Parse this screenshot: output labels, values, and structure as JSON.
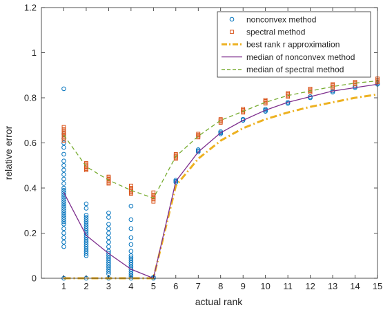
{
  "chart_data": {
    "type": "scatter",
    "xlabel": "actual rank",
    "ylabel": "relative error",
    "xlim": [
      0,
      15
    ],
    "ylim": [
      0,
      1.2
    ],
    "xticks": [
      1,
      2,
      3,
      4,
      5,
      6,
      7,
      8,
      9,
      10,
      11,
      12,
      13,
      14,
      15
    ],
    "yticks": [
      0,
      0.2,
      0.4,
      0.6,
      0.8,
      1.0,
      1.2
    ],
    "ytick_labels": [
      "0",
      "0.2",
      "0.4",
      "0.6",
      "0.8",
      "1",
      "1.2"
    ],
    "grid": false,
    "legend_position": "top-right",
    "legend": [
      "nonconvex method",
      "spectral method",
      "best rank r approximation",
      "median of nonconvex method",
      "median of spectral method"
    ],
    "series": [
      {
        "name": "nonconvex method",
        "kind": "scatter",
        "color": "#0072BD",
        "points": [
          [
            1,
            0.84
          ],
          [
            1,
            0.64
          ],
          [
            1,
            0.62
          ],
          [
            1,
            0.6
          ],
          [
            1,
            0.58
          ],
          [
            1,
            0.55
          ],
          [
            1,
            0.52
          ],
          [
            1,
            0.5
          ],
          [
            1,
            0.48
          ],
          [
            1,
            0.46
          ],
          [
            1,
            0.44
          ],
          [
            1,
            0.42
          ],
          [
            1,
            0.4
          ],
          [
            1,
            0.39
          ],
          [
            1,
            0.38
          ],
          [
            1,
            0.37
          ],
          [
            1,
            0.36
          ],
          [
            1,
            0.35
          ],
          [
            1,
            0.34
          ],
          [
            1,
            0.33
          ],
          [
            1,
            0.32
          ],
          [
            1,
            0.31
          ],
          [
            1,
            0.3
          ],
          [
            1,
            0.29
          ],
          [
            1,
            0.28
          ],
          [
            1,
            0.27
          ],
          [
            1,
            0.26
          ],
          [
            1,
            0.25
          ],
          [
            1,
            0.24
          ],
          [
            1,
            0.22
          ],
          [
            1,
            0.2
          ],
          [
            1,
            0.18
          ],
          [
            1,
            0.16
          ],
          [
            1,
            0.14
          ],
          [
            1,
            0.0
          ],
          [
            2,
            0.33
          ],
          [
            2,
            0.31
          ],
          [
            2,
            0.28
          ],
          [
            2,
            0.27
          ],
          [
            2,
            0.26
          ],
          [
            2,
            0.25
          ],
          [
            2,
            0.24
          ],
          [
            2,
            0.23
          ],
          [
            2,
            0.22
          ],
          [
            2,
            0.21
          ],
          [
            2,
            0.2
          ],
          [
            2,
            0.19
          ],
          [
            2,
            0.18
          ],
          [
            2,
            0.17
          ],
          [
            2,
            0.16
          ],
          [
            2,
            0.15
          ],
          [
            2,
            0.14
          ],
          [
            2,
            0.13
          ],
          [
            2,
            0.12
          ],
          [
            2,
            0.11
          ],
          [
            2,
            0.1
          ],
          [
            2,
            0.0
          ],
          [
            3,
            0.29
          ],
          [
            3,
            0.27
          ],
          [
            3,
            0.24
          ],
          [
            3,
            0.22
          ],
          [
            3,
            0.2
          ],
          [
            3,
            0.18
          ],
          [
            3,
            0.16
          ],
          [
            3,
            0.14
          ],
          [
            3,
            0.12
          ],
          [
            3,
            0.11
          ],
          [
            3,
            0.1
          ],
          [
            3,
            0.09
          ],
          [
            3,
            0.08
          ],
          [
            3,
            0.07
          ],
          [
            3,
            0.06
          ],
          [
            3,
            0.05
          ],
          [
            3,
            0.04
          ],
          [
            3,
            0.03
          ],
          [
            3,
            0.02
          ],
          [
            3,
            0.0
          ],
          [
            4,
            0.32
          ],
          [
            4,
            0.26
          ],
          [
            4,
            0.22
          ],
          [
            4,
            0.18
          ],
          [
            4,
            0.15
          ],
          [
            4,
            0.12
          ],
          [
            4,
            0.1
          ],
          [
            4,
            0.09
          ],
          [
            4,
            0.08
          ],
          [
            4,
            0.07
          ],
          [
            4,
            0.06
          ],
          [
            4,
            0.05
          ],
          [
            4,
            0.04
          ],
          [
            4,
            0.03
          ],
          [
            4,
            0.02
          ],
          [
            4,
            0.01
          ],
          [
            4,
            0.0
          ],
          [
            5,
            0.0
          ],
          [
            5,
            0.005
          ],
          [
            6,
            0.43
          ],
          [
            6,
            0.435
          ],
          [
            6,
            0.425
          ],
          [
            7,
            0.56
          ],
          [
            7,
            0.565
          ],
          [
            7,
            0.57
          ],
          [
            8,
            0.64
          ],
          [
            8,
            0.645
          ],
          [
            8,
            0.65
          ],
          [
            9,
            0.7
          ],
          [
            9,
            0.705
          ],
          [
            10,
            0.74
          ],
          [
            10,
            0.745
          ],
          [
            10,
            0.75
          ],
          [
            11,
            0.775
          ],
          [
            11,
            0.78
          ],
          [
            12,
            0.8
          ],
          [
            12,
            0.805
          ],
          [
            13,
            0.825
          ],
          [
            13,
            0.83
          ],
          [
            14,
            0.845
          ],
          [
            14,
            0.85
          ],
          [
            15,
            0.86
          ],
          [
            15,
            0.865
          ]
        ]
      },
      {
        "name": "spectral method",
        "kind": "scatter",
        "color": "#D95319",
        "points": [
          [
            1,
            0.67
          ],
          [
            1,
            0.66
          ],
          [
            1,
            0.655
          ],
          [
            1,
            0.65
          ],
          [
            1,
            0.645
          ],
          [
            1,
            0.64
          ],
          [
            1,
            0.635
          ],
          [
            1,
            0.63
          ],
          [
            1,
            0.62
          ],
          [
            1,
            0.61
          ],
          [
            2,
            0.51
          ],
          [
            2,
            0.505
          ],
          [
            2,
            0.5
          ],
          [
            2,
            0.495
          ],
          [
            2,
            0.49
          ],
          [
            2,
            0.485
          ],
          [
            2,
            0.48
          ],
          [
            3,
            0.45
          ],
          [
            3,
            0.445
          ],
          [
            3,
            0.44
          ],
          [
            3,
            0.435
          ],
          [
            3,
            0.43
          ],
          [
            3,
            0.425
          ],
          [
            3,
            0.42
          ],
          [
            4,
            0.41
          ],
          [
            4,
            0.4
          ],
          [
            4,
            0.395
          ],
          [
            4,
            0.39
          ],
          [
            4,
            0.385
          ],
          [
            4,
            0.38
          ],
          [
            4,
            0.375
          ],
          [
            5,
            0.38
          ],
          [
            5,
            0.37
          ],
          [
            5,
            0.365
          ],
          [
            5,
            0.36
          ],
          [
            5,
            0.355
          ],
          [
            5,
            0.35
          ],
          [
            5,
            0.34
          ],
          [
            6,
            0.55
          ],
          [
            6,
            0.545
          ],
          [
            6,
            0.54
          ],
          [
            6,
            0.535
          ],
          [
            6,
            0.53
          ],
          [
            7,
            0.64
          ],
          [
            7,
            0.635
          ],
          [
            7,
            0.63
          ],
          [
            7,
            0.625
          ],
          [
            8,
            0.705
          ],
          [
            8,
            0.7
          ],
          [
            8,
            0.695
          ],
          [
            8,
            0.69
          ],
          [
            9,
            0.75
          ],
          [
            9,
            0.745
          ],
          [
            9,
            0.74
          ],
          [
            9,
            0.735
          ],
          [
            10,
            0.79
          ],
          [
            10,
            0.785
          ],
          [
            10,
            0.78
          ],
          [
            10,
            0.775
          ],
          [
            11,
            0.82
          ],
          [
            11,
            0.815
          ],
          [
            11,
            0.81
          ],
          [
            11,
            0.805
          ],
          [
            12,
            0.84
          ],
          [
            12,
            0.835
          ],
          [
            12,
            0.83
          ],
          [
            12,
            0.825
          ],
          [
            13,
            0.86
          ],
          [
            13,
            0.855
          ],
          [
            13,
            0.85
          ],
          [
            13,
            0.845
          ],
          [
            14,
            0.87
          ],
          [
            14,
            0.865
          ],
          [
            14,
            0.86
          ],
          [
            15,
            0.885
          ],
          [
            15,
            0.88
          ],
          [
            15,
            0.875
          ],
          [
            15,
            0.87
          ]
        ]
      },
      {
        "name": "best rank r approximation",
        "kind": "line",
        "dash": "dashdot",
        "color": "#EDB120",
        "x": [
          1,
          2,
          3,
          4,
          5,
          6,
          7,
          8,
          9,
          10,
          11,
          12,
          13,
          14,
          15
        ],
        "y": [
          0,
          0,
          0,
          0,
          0,
          0.41,
          0.53,
          0.61,
          0.665,
          0.705,
          0.735,
          0.76,
          0.78,
          0.8,
          0.815
        ]
      },
      {
        "name": "median of nonconvex method",
        "kind": "line",
        "dash": "solid",
        "color": "#7E2F8E",
        "x": [
          1,
          2,
          3,
          4,
          5,
          6,
          7,
          8,
          9,
          10,
          11,
          12,
          13,
          14,
          15
        ],
        "y": [
          0.38,
          0.19,
          0.11,
          0.04,
          0,
          0.43,
          0.56,
          0.645,
          0.7,
          0.745,
          0.78,
          0.805,
          0.83,
          0.845,
          0.86
        ]
      },
      {
        "name": "median of spectral method",
        "kind": "line",
        "dash": "dashed",
        "color": "#77AC30",
        "x": [
          1,
          2,
          3,
          4,
          5,
          6,
          7,
          8,
          9,
          10,
          11,
          12,
          13,
          14,
          15
        ],
        "y": [
          0.635,
          0.495,
          0.435,
          0.39,
          0.355,
          0.54,
          0.63,
          0.7,
          0.74,
          0.78,
          0.81,
          0.83,
          0.85,
          0.865,
          0.875
        ]
      }
    ]
  }
}
